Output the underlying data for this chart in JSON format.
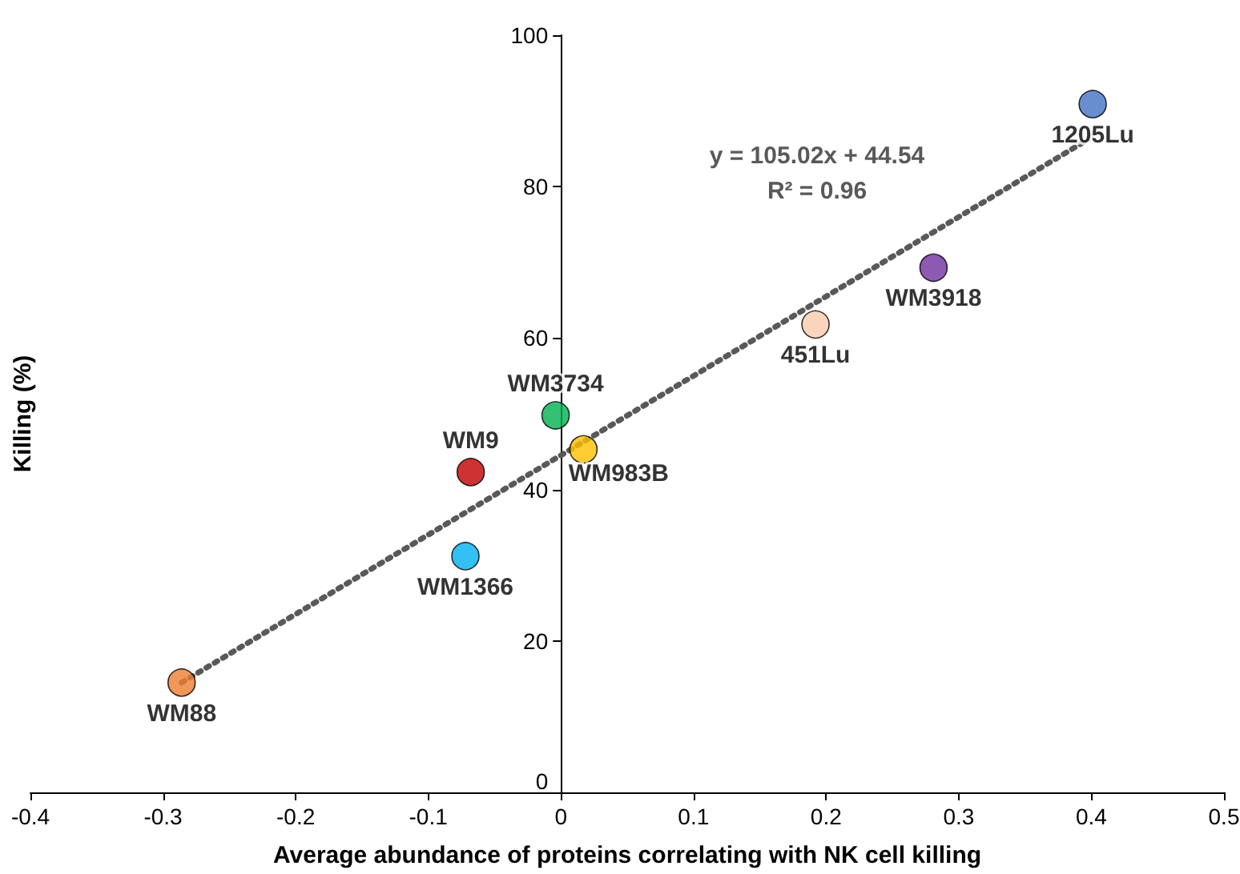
{
  "chart_data": {
    "type": "scatter",
    "xlabel": "Average abundance of proteins correlating with NK cell killing",
    "ylabel": "Killing (%)",
    "xlim": [
      -0.4,
      0.5
    ],
    "xticks": [
      -0.4,
      -0.3,
      -0.2,
      -0.1,
      0,
      0.1,
      0.2,
      0.3,
      0.4,
      0.5
    ],
    "ylim": [
      0,
      100
    ],
    "yticks": [
      0,
      20,
      40,
      60,
      80,
      100
    ],
    "grid": false,
    "legend": false,
    "marker": "circle",
    "annotations": [
      "y = 105.02x + 44.54",
      "R² = 0.96"
    ],
    "series": [
      {
        "name": "1205Lu",
        "color": "#4472c4",
        "x": [
          0.401
        ],
        "values": [
          90.9
        ]
      },
      {
        "name": "WM3918",
        "color": "#7030a0",
        "x": [
          0.281
        ],
        "values": [
          69.3
        ]
      },
      {
        "name": "451Lu",
        "color": "#f8cbad",
        "x": [
          0.192
        ],
        "values": [
          61.8
        ]
      },
      {
        "name": "WM3734",
        "color": "#00b050",
        "x": [
          -0.004
        ],
        "values": [
          49.8
        ]
      },
      {
        "name": "WM983B",
        "color": "#ffc000",
        "x": [
          0.017
        ],
        "values": [
          45.3
        ]
      },
      {
        "name": "WM9",
        "color": "#c00000",
        "x": [
          -0.068
        ],
        "values": [
          42.3
        ]
      },
      {
        "name": "WM1366",
        "color": "#00b0f0",
        "x": [
          -0.072
        ],
        "values": [
          31.2
        ]
      },
      {
        "name": "WM88",
        "color": "#ed7d31",
        "x": [
          -0.286
        ],
        "values": [
          14.5
        ]
      },
      {
        "type": "line",
        "color": "#595959",
        "line_style": "dotted",
        "marker": "none",
        "x": [
          -0.286,
          0.401
        ],
        "values": [
          14.5,
          86.6
        ]
      }
    ]
  }
}
